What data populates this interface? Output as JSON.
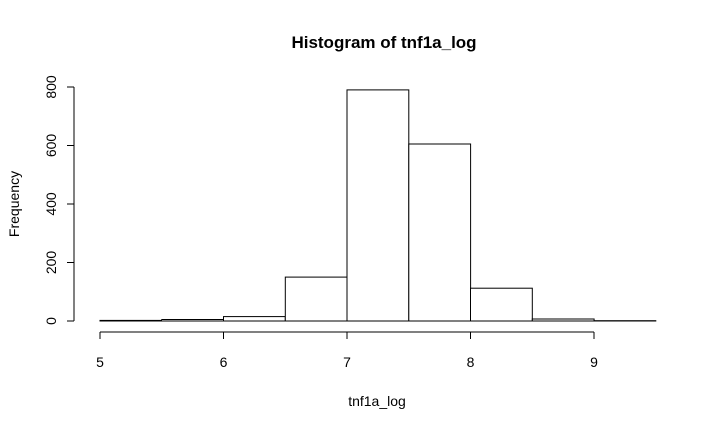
{
  "chart_data": {
    "type": "bar",
    "title": "Histogram of tnf1a_log",
    "xlabel": "tnf1a_log",
    "ylabel": "Frequency",
    "bins": [
      {
        "start": 5.0,
        "end": 5.5,
        "count": 2
      },
      {
        "start": 5.5,
        "end": 6.0,
        "count": 5
      },
      {
        "start": 6.0,
        "end": 6.5,
        "count": 15
      },
      {
        "start": 6.5,
        "end": 7.0,
        "count": 150
      },
      {
        "start": 7.0,
        "end": 7.5,
        "count": 790
      },
      {
        "start": 7.5,
        "end": 8.0,
        "count": 605
      },
      {
        "start": 8.0,
        "end": 8.5,
        "count": 112
      },
      {
        "start": 8.5,
        "end": 9.0,
        "count": 7
      },
      {
        "start": 9.0,
        "end": 9.5,
        "count": 1
      }
    ],
    "xlim": [
      5.0,
      9.5
    ],
    "ylim": [
      0,
      800
    ],
    "x_ticks": [
      5,
      6,
      7,
      8,
      9
    ],
    "y_ticks": [
      0,
      200,
      400,
      600,
      800
    ],
    "grid": false,
    "legend": "none"
  }
}
